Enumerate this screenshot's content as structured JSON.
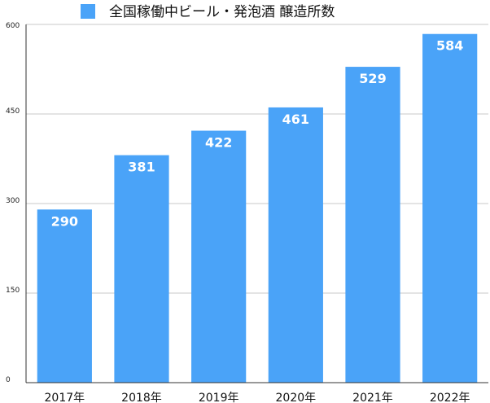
{
  "chart_data": {
    "type": "bar",
    "title": "",
    "xlabel": "",
    "ylabel": "",
    "categories": [
      "2017年",
      "2018年",
      "2019年",
      "2020年",
      "2021年",
      "2022年"
    ],
    "series": [
      {
        "name": "全国稼働中ビール・発泡酒 醸造所数",
        "values": [
          290,
          381,
          422,
          461,
          529,
          584
        ]
      }
    ],
    "ylim": [
      0,
      600
    ],
    "yticks": [
      0,
      150,
      300,
      450,
      600
    ],
    "grid": true,
    "legend_position": "top-center",
    "data_labels": "inside-top",
    "colors": {
      "bar": "#4aa3f8",
      "legend_swatch": "#4aa3f8",
      "grid": "#c8c8c8",
      "axis": "#333333"
    }
  }
}
